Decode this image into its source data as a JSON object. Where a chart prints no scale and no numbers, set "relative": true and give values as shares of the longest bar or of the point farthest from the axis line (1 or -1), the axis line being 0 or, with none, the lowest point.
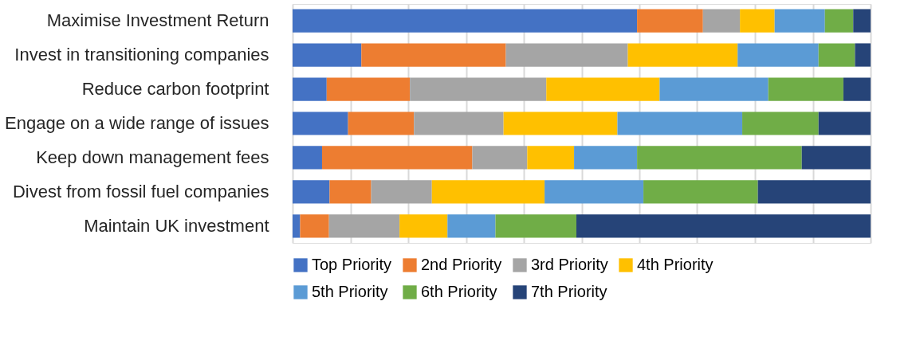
{
  "chart_data": {
    "type": "bar",
    "orientation": "horizontal",
    "stacked": true,
    "relative": true,
    "categories": [
      "Maximise Investment Return",
      "Invest in transitioning companies",
      "Reduce carbon footprint",
      "Engage on a wide range of issues",
      "Keep down management fees",
      "Divest from fossil fuel companies",
      "Maintain UK investment"
    ],
    "series": [
      {
        "name": "Top Priority",
        "color": "#4472c4",
        "values": [
          0.596,
          0.119,
          0.059,
          0.096,
          0.051,
          0.064,
          0.013
        ]
      },
      {
        "name": "2nd Priority",
        "color": "#ed7d31",
        "values": [
          0.114,
          0.25,
          0.144,
          0.114,
          0.26,
          0.072,
          0.05
        ]
      },
      {
        "name": "3rd Priority",
        "color": "#a5a5a5",
        "values": [
          0.064,
          0.211,
          0.236,
          0.155,
          0.095,
          0.105,
          0.122
        ]
      },
      {
        "name": "4th Priority",
        "color": "#ffc000",
        "values": [
          0.06,
          0.19,
          0.196,
          0.197,
          0.081,
          0.195,
          0.083
        ]
      },
      {
        "name": "5th Priority",
        "color": "#5b9bd5",
        "values": [
          0.087,
          0.14,
          0.188,
          0.216,
          0.109,
          0.171,
          0.083
        ]
      },
      {
        "name": "6th Priority",
        "color": "#70ad47",
        "values": [
          0.049,
          0.063,
          0.13,
          0.132,
          0.285,
          0.198,
          0.14
        ]
      },
      {
        "name": "7th Priority",
        "color": "#264478",
        "values": [
          0.03,
          0.027,
          0.047,
          0.09,
          0.119,
          0.195,
          0.509
        ]
      }
    ],
    "grid": "x",
    "legend": "bottom"
  }
}
